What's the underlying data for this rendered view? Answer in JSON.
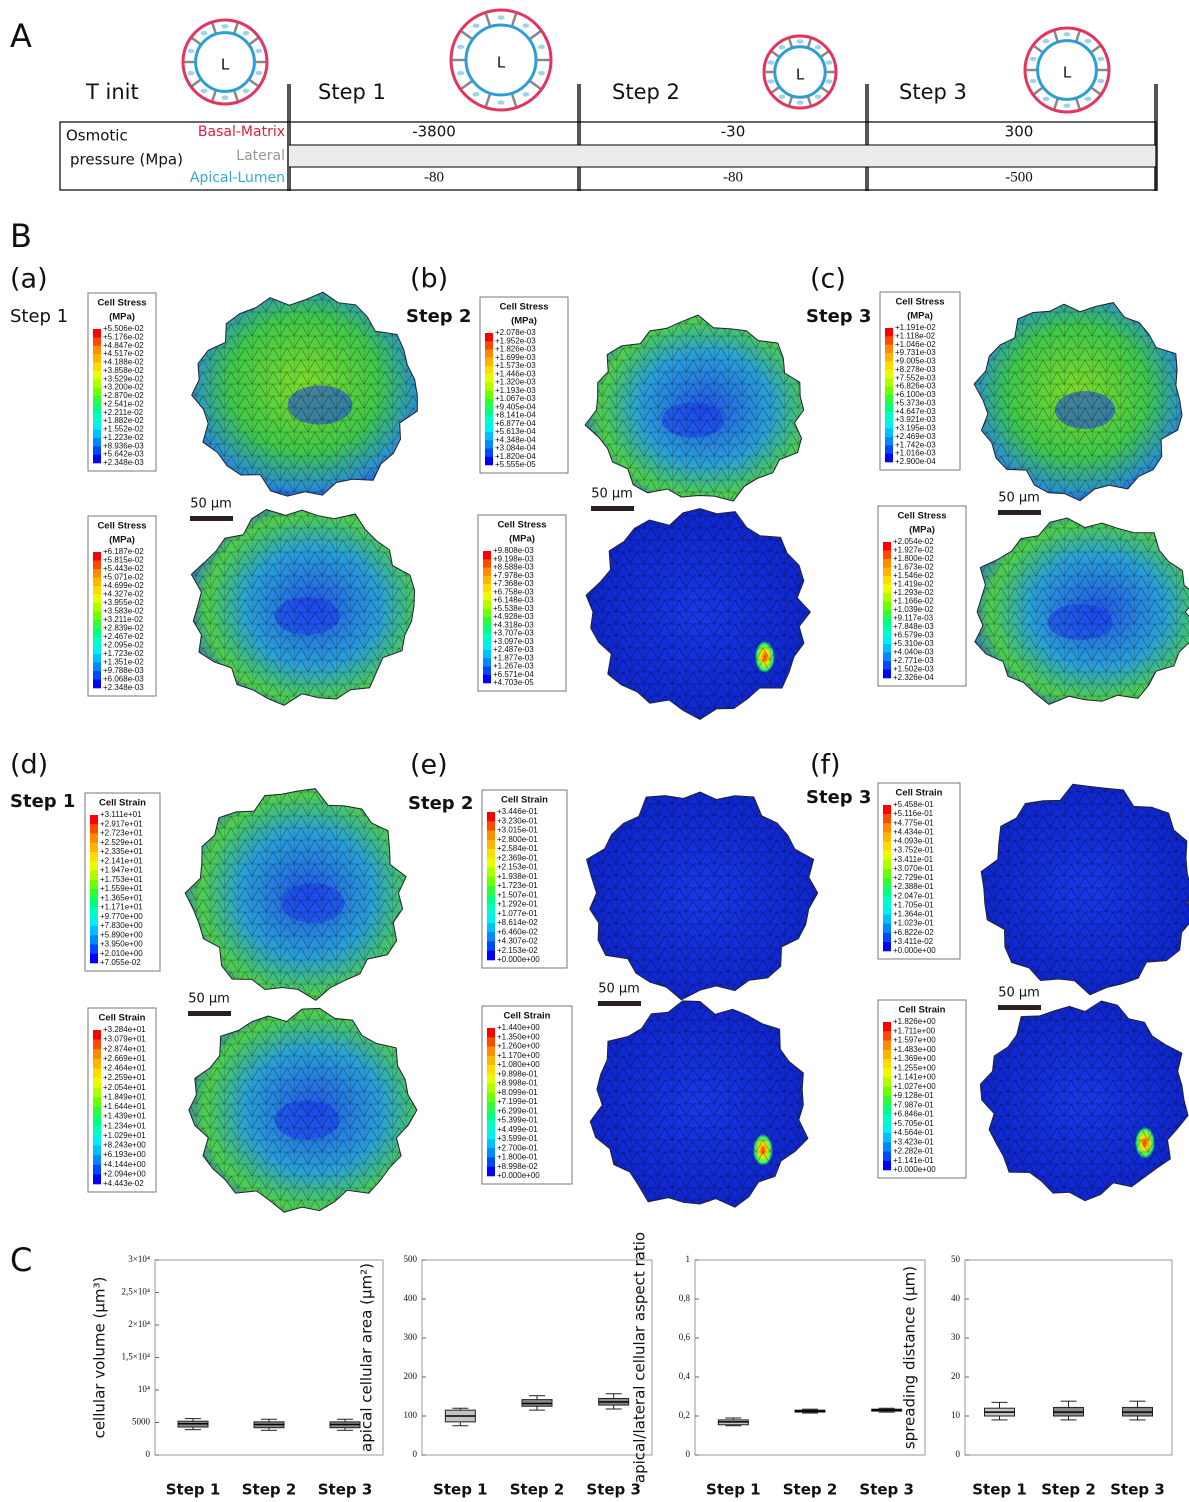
{
  "panel_a": {
    "label": "A",
    "t_init": "T init",
    "steps": [
      "Step 1",
      "Step 2",
      "Step 3"
    ],
    "lumen": "L",
    "pressure_label": [
      "Osmotic",
      "pressure (Mpa)"
    ],
    "rows": [
      {
        "name": "Basal-Matrix",
        "values": [
          "-3800",
          "-30",
          "300"
        ]
      },
      {
        "name": "Lateral"
      },
      {
        "name": "Apical-Lumen",
        "values": [
          "-80",
          "-80",
          "-500"
        ]
      }
    ]
  },
  "panel_b": {
    "label": "B",
    "panels": [
      {
        "label": "(a)",
        "step": "Step 1",
        "scale": "50 µm",
        "legends": [
          {
            "title": "Cell Stress",
            "unit": "(MPa)",
            "values": [
              "+5.506e-02",
              "+5.176e-02",
              "+4.847e-02",
              "+4.517e-02",
              "+4.188e-02",
              "+3.858e-02",
              "+3.529e-02",
              "+3.200e-02",
              "+2.870e-02",
              "+2.541e-02",
              "+2.211e-02",
              "+1.882e-02",
              "+1.552e-02",
              "+1.223e-02",
              "+8.936e-03",
              "+5.642e-03",
              "+2.348e-03"
            ]
          },
          {
            "title": "Cell Stress",
            "unit": "(MPa)",
            "values": [
              "+6.187e-02",
              "+5.815e-02",
              "+5.443e-02",
              "+5.071e-02",
              "+4.699e-02",
              "+4.327e-02",
              "+3.955e-02",
              "+3.583e-02",
              "+3.211e-02",
              "+2.839e-02",
              "+2.467e-02",
              "+2.095e-02",
              "+1.723e-02",
              "+1.351e-02",
              "+9.788e-03",
              "+6.068e-03",
              "+2.348e-03"
            ]
          }
        ]
      },
      {
        "label": "(b)",
        "step": "Step 2",
        "scale": "50 µm",
        "legends": [
          {
            "title": "Cell Stress",
            "unit": "(MPa)",
            "values": [
              "+2.078e-03",
              "+1.952e-03",
              "+1.826e-03",
              "+1.699e-03",
              "+1.573e-03",
              "+1.446e-03",
              "+1.320e-03",
              "+1.193e-03",
              "+1.067e-03",
              "+9.405e-04",
              "+8.141e-04",
              "+6.877e-04",
              "+5.613e-04",
              "+4.348e-04",
              "+3.084e-04",
              "+1.820e-04",
              "+5.555e-05"
            ]
          },
          {
            "title": "Cell Stress",
            "unit": "(MPa)",
            "values": [
              "+9.808e-03",
              "+9.198e-03",
              "+8.588e-03",
              "+7.978e-03",
              "+7.368e-03",
              "+6.758e-03",
              "+6.148e-03",
              "+5.538e-03",
              "+4.928e-03",
              "+4.318e-03",
              "+3.707e-03",
              "+3.097e-03",
              "+2.487e-03",
              "+1.877e-03",
              "+1.267e-03",
              "+6.571e-04",
              "+4.703e-05"
            ]
          }
        ]
      },
      {
        "label": "(c)",
        "step": "Step 3",
        "scale": "50 µm",
        "legends": [
          {
            "title": "Cell Stress",
            "unit": "(MPa)",
            "values": [
              "+1.191e-02",
              "+1.118e-02",
              "+1.046e-02",
              "+9.731e-03",
              "+9.005e-03",
              "+8.278e-03",
              "+7.552e-03",
              "+6.826e-03",
              "+6.100e-03",
              "+5.373e-03",
              "+4.647e-03",
              "+3.921e-03",
              "+3.195e-03",
              "+2.469e-03",
              "+1.742e-03",
              "+1.016e-03",
              "+2.900e-04"
            ]
          },
          {
            "title": "Cell Stress",
            "unit": "(MPa)",
            "values": [
              "+2.054e-02",
              "+1.927e-02",
              "+1.800e-02",
              "+1.673e-02",
              "+1.546e-02",
              "+1.419e-02",
              "+1.293e-02",
              "+1.166e-02",
              "+1.039e-02",
              "+9.117e-03",
              "+7.848e-03",
              "+6.579e-03",
              "+5.310e-03",
              "+4.040e-03",
              "+2.771e-03",
              "+1.502e-03",
              "+2.326e-04"
            ]
          }
        ]
      },
      {
        "label": "(d)",
        "step": "Step 1",
        "scale": "50 µm",
        "legends": [
          {
            "title": "Cell Strain",
            "values": [
              "+3.111e+01",
              "+2.917e+01",
              "+2.723e+01",
              "+2.529e+01",
              "+2.335e+01",
              "+2.141e+01",
              "+1.947e+01",
              "+1.753e+01",
              "+1.559e+01",
              "+1.365e+01",
              "+1.171e+01",
              "+9.770e+00",
              "+7.830e+00",
              "+5.890e+00",
              "+3.950e+00",
              "+2.010e+00",
              "+7.055e-02"
            ]
          },
          {
            "title": "Cell Strain",
            "values": [
              "+3.284e+01",
              "+3.079e+01",
              "+2.874e+01",
              "+2.669e+01",
              "+2.464e+01",
              "+2.259e+01",
              "+2.054e+01",
              "+1.849e+01",
              "+1.644e+01",
              "+1.439e+01",
              "+1.234e+01",
              "+1.029e+01",
              "+8.243e+00",
              "+6.193e+00",
              "+4.144e+00",
              "+2.094e+00",
              "+4.443e-02"
            ]
          }
        ]
      },
      {
        "label": "(e)",
        "step": "Step 2",
        "scale": "50 µm",
        "legends": [
          {
            "title": "Cell Strain",
            "values": [
              "+3.446e-01",
              "+3.230e-01",
              "+3.015e-01",
              "+2.800e-01",
              "+2.584e-01",
              "+2.369e-01",
              "+2.153e-01",
              "+1.938e-01",
              "+1.723e-01",
              "+1.507e-01",
              "+1.292e-01",
              "+1.077e-01",
              "+8.614e-02",
              "+6.460e-02",
              "+4.307e-02",
              "+2.153e-02",
              "+0.000e+00"
            ]
          },
          {
            "title": "Cell Strain",
            "values": [
              "+1.440e+00",
              "+1.350e+00",
              "+1.260e+00",
              "+1.170e+00",
              "+1.080e+00",
              "+9.898e-01",
              "+8.998e-01",
              "+8.099e-01",
              "+7.199e-01",
              "+6.299e-01",
              "+5.399e-01",
              "+4.499e-01",
              "+3.599e-01",
              "+2.700e-01",
              "+1.800e-01",
              "+8.998e-02",
              "+0.000e+00"
            ]
          }
        ]
      },
      {
        "label": "(f)",
        "step": "Step 3",
        "scale": "50 µm",
        "legends": [
          {
            "title": "Cell Strain",
            "values": [
              "+5.458e-01",
              "+5.116e-01",
              "+4.775e-01",
              "+4.434e-01",
              "+4.093e-01",
              "+3.752e-01",
              "+3.411e-01",
              "+3.070e-01",
              "+2.729e-01",
              "+2.388e-01",
              "+2.047e-01",
              "+1.705e-01",
              "+1.364e-01",
              "+1.023e-01",
              "+6.822e-02",
              "+3.411e-02",
              "+0.000e+00"
            ]
          },
          {
            "title": "Cell Strain",
            "values": [
              "+1.826e+00",
              "+1.711e+00",
              "+1.597e+00",
              "+1.483e+00",
              "+1.369e+00",
              "+1.255e+00",
              "+1.141e+00",
              "+1.027e+00",
              "+9.128e-01",
              "+7.987e-01",
              "+6.846e-01",
              "+5.705e-01",
              "+4.564e-01",
              "+3.423e-01",
              "+2.282e-01",
              "+1.141e-01",
              "+0.000e+00"
            ]
          }
        ]
      }
    ]
  },
  "panel_c": {
    "label": "C"
  },
  "chart_data": [
    {
      "type": "box",
      "y_label": "cellular volume (µm³)",
      "categories": [
        "Step 1",
        "Step 2",
        "Step 3"
      ],
      "ylim": [
        0,
        30000
      ],
      "yticks": [
        0,
        5000,
        {
          "value": 10000,
          "label": "10⁴"
        },
        {
          "value": 15000,
          "label": "1,5×10⁴"
        },
        {
          "value": 20000,
          "label": "2×10⁴"
        },
        {
          "value": 25000,
          "label": "2,5×10⁴"
        },
        {
          "value": 30000,
          "label": "3×10⁴"
        }
      ],
      "boxes": [
        {
          "min": 3900,
          "q1": 4300,
          "median": 4800,
          "q3": 5200,
          "max": 5600
        },
        {
          "min": 3800,
          "q1": 4200,
          "median": 4700,
          "q3": 5100,
          "max": 5500
        },
        {
          "min": 3800,
          "q1": 4200,
          "median": 4700,
          "q3": 5100,
          "max": 5500
        }
      ]
    },
    {
      "type": "box",
      "y_label": "apical cellular area (µm²)",
      "categories": [
        "Step 1",
        "Step 2",
        "Step 3"
      ],
      "ylim": [
        0,
        500
      ],
      "yticks": [
        0,
        100,
        200,
        300,
        400,
        500
      ],
      "boxes": [
        {
          "min": 75,
          "q1": 85,
          "median": 100,
          "q3": 115,
          "max": 120
        },
        {
          "min": 115,
          "q1": 125,
          "median": 132,
          "q3": 142,
          "max": 152
        },
        {
          "min": 118,
          "q1": 128,
          "median": 136,
          "q3": 145,
          "max": 157
        }
      ]
    },
    {
      "type": "box",
      "y_label": "apical/lateral cellular aspect ratio",
      "categories": [
        "Step 1",
        "Step 2",
        "Step 3"
      ],
      "ylim": [
        0,
        1
      ],
      "yticks": [
        0,
        {
          "value": 0.2,
          "label": "0,2"
        },
        {
          "value": 0.4,
          "label": "0,4"
        },
        {
          "value": 0.6,
          "label": "0,6"
        },
        {
          "value": 0.8,
          "label": "0,8"
        },
        1
      ],
      "boxes": [
        {
          "min": 0.15,
          "q1": 0.155,
          "median": 0.17,
          "q3": 0.18,
          "max": 0.19
        },
        {
          "min": 0.215,
          "q1": 0.22,
          "median": 0.225,
          "q3": 0.23,
          "max": 0.235
        },
        {
          "min": 0.22,
          "q1": 0.225,
          "median": 0.23,
          "q3": 0.235,
          "max": 0.24
        }
      ]
    },
    {
      "type": "box",
      "y_label": "spreading distance (µm)",
      "categories": [
        "Step 1",
        "Step 2",
        "Step 3"
      ],
      "ylim": [
        0,
        50
      ],
      "yticks": [
        0,
        10,
        20,
        30,
        40,
        50
      ],
      "boxes": [
        {
          "min": 9,
          "q1": 10,
          "median": 11,
          "q3": 12,
          "max": 13.5
        },
        {
          "min": 9,
          "q1": 10,
          "median": 11,
          "q3": 12.2,
          "max": 13.8
        },
        {
          "min": 9,
          "q1": 10,
          "median": 11,
          "q3": 12.2,
          "max": 13.8
        }
      ]
    }
  ]
}
